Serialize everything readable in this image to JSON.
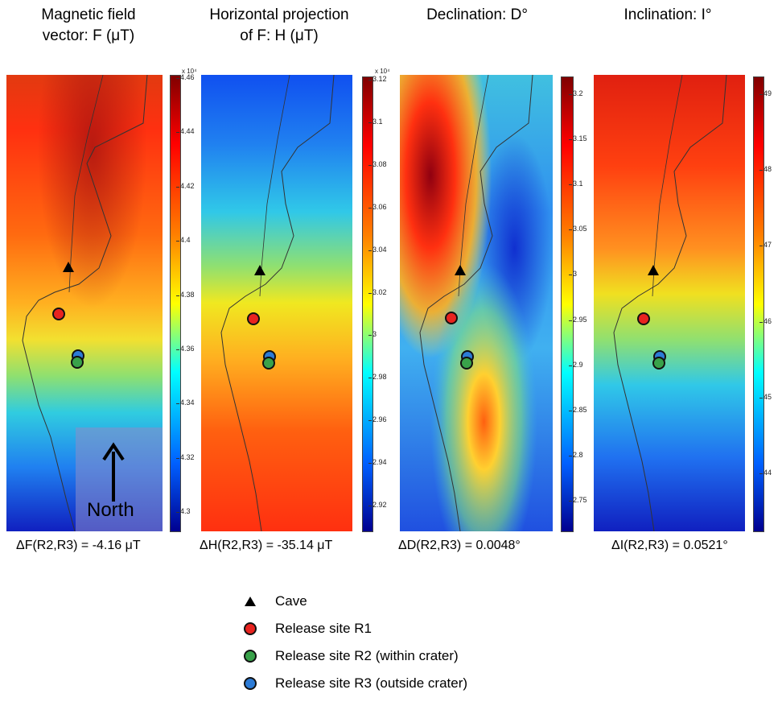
{
  "panels": [
    {
      "title": "Magnetic field\nvector:  F (μT)",
      "scale_factor": "x 10⁴",
      "ticks": [
        "4.46",
        "4.44",
        "4.42",
        "4.4",
        "4.38",
        "4.36",
        "4.34",
        "4.32",
        "4.3"
      ],
      "delta": "ΔF(R2,R3) =  -4.16 μT"
    },
    {
      "title": "Horizontal projection\nof F:  H (μT)",
      "scale_factor": "x 10⁴",
      "ticks": [
        "3.12",
        "3.1",
        "3.08",
        "3.06",
        "3.04",
        "3.02",
        "3",
        "2.98",
        "2.96",
        "2.94",
        "2.92"
      ],
      "delta": "ΔH(R2,R3) = -35.14 μT"
    },
    {
      "title": "Declination: D°",
      "scale_factor": "",
      "ticks": [
        "3.2",
        "3.15",
        "3.1",
        "3.05",
        "3",
        "2.95",
        "2.9",
        "2.85",
        "2.8",
        "2.75"
      ],
      "delta": "ΔD(R2,R3) =  0.0048°"
    },
    {
      "title": "Inclination: I°",
      "scale_factor": "",
      "ticks": [
        "49",
        "48",
        "47",
        "46",
        "45",
        "44"
      ],
      "delta": "ΔI(R2,R3) =   0.0521°"
    }
  ],
  "north_label": "North",
  "legend": [
    {
      "label": "Cave",
      "symbol": "triangle",
      "color": "#000000"
    },
    {
      "label": "Release site R1",
      "symbol": "circle",
      "color": "#e8231f"
    },
    {
      "label": "Release site R2 (within crater)",
      "symbol": "circle",
      "color": "#39a24a"
    },
    {
      "label": "Release site R3 (outside crater)",
      "symbol": "circle",
      "color": "#2c7bd6"
    }
  ],
  "colors": {
    "jet_dark_red": "#800000",
    "jet_red": "#ff2000",
    "jet_orange": "#ff9900",
    "jet_yellow": "#f5f000",
    "jet_cyan": "#30d0e0",
    "jet_blue": "#1040ff",
    "jet_dark_blue": "#000080"
  }
}
